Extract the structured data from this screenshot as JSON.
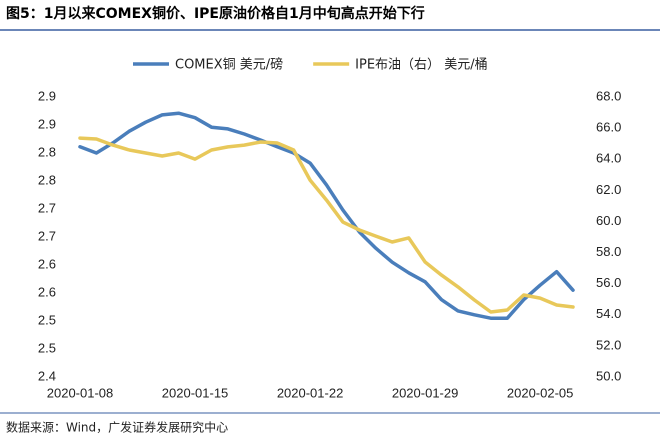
{
  "chart_data": {
    "type": "line",
    "title": "图5：1月以来COMEX铜价、IPE原油价格自1月中旬高点开始下行",
    "source": "数据来源：Wind，广发证券发展研究中心",
    "categories": [
      "2020-01-08",
      null,
      null,
      null,
      null,
      null,
      null,
      "2020-01-15",
      null,
      null,
      null,
      null,
      null,
      null,
      "2020-01-22",
      null,
      null,
      null,
      null,
      null,
      null,
      "2020-01-29",
      null,
      null,
      null,
      null,
      null,
      null,
      "2020-02-05",
      null,
      null
    ],
    "series": [
      {
        "name": "COMEX铜 美元/磅",
        "color": "#4a7ebb",
        "axis": "y",
        "values": [
          2.811,
          2.8,
          2.818,
          2.839,
          2.855,
          2.868,
          2.871,
          2.863,
          2.846,
          2.843,
          2.834,
          2.823,
          2.811,
          2.8,
          2.782,
          2.743,
          2.698,
          2.659,
          2.63,
          2.605,
          2.586,
          2.57,
          2.538,
          2.518,
          2.511,
          2.505,
          2.505,
          2.538,
          2.564,
          2.588,
          2.555
        ]
      },
      {
        "name": "IPE布油（右） 美元/桶",
        "color": "#e8c85a",
        "axis": "y2",
        "values": [
          65.36,
          65.3,
          64.91,
          64.59,
          64.4,
          64.21,
          64.4,
          64.01,
          64.59,
          64.79,
          64.91,
          65.11,
          65.04,
          64.59,
          62.66,
          61.37,
          59.96,
          59.45,
          59.06,
          58.68,
          58.94,
          57.39,
          56.55,
          55.79,
          54.95,
          54.18,
          54.31,
          55.27,
          55.07,
          54.63,
          54.5
        ]
      }
    ],
    "ylim": [
      2.4,
      2.9
    ],
    "yticks": [
      {
        "value": 2.4,
        "label": "2.4"
      },
      {
        "value": 2.45,
        "label": "2.5"
      },
      {
        "value": 2.5,
        "label": "2.5"
      },
      {
        "value": 2.55,
        "label": "2.6"
      },
      {
        "value": 2.6,
        "label": "2.6"
      },
      {
        "value": 2.65,
        "label": "2.7"
      },
      {
        "value": 2.7,
        "label": "2.7"
      },
      {
        "value": 2.75,
        "label": "2.8"
      },
      {
        "value": 2.8,
        "label": "2.8"
      },
      {
        "value": 2.85,
        "label": "2.9"
      },
      {
        "value": 2.9,
        "label": "2.9"
      }
    ],
    "y2lim": [
      50,
      68
    ],
    "y2ticks": [
      {
        "value": 50,
        "label": "50.0"
      },
      {
        "value": 52,
        "label": "52.0"
      },
      {
        "value": 54,
        "label": "54.0"
      },
      {
        "value": 56,
        "label": "56.0"
      },
      {
        "value": 58,
        "label": "58.0"
      },
      {
        "value": 60,
        "label": "60.0"
      },
      {
        "value": 62,
        "label": "62.0"
      },
      {
        "value": 64,
        "label": "64.0"
      },
      {
        "value": 66,
        "label": "66.0"
      },
      {
        "value": 68,
        "label": "68.0"
      }
    ],
    "grid": false,
    "legend": "top"
  }
}
